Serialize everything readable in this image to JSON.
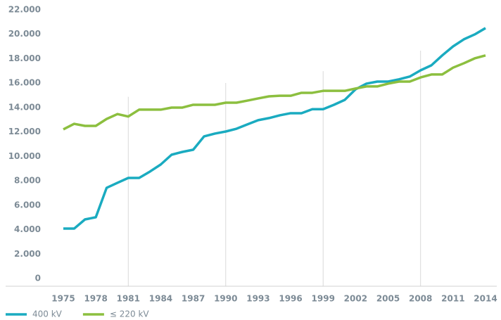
{
  "chart_data": {
    "type": "line",
    "x": [
      1975,
      1976,
      1977,
      1978,
      1979,
      1980,
      1981,
      1982,
      1983,
      1984,
      1985,
      1986,
      1987,
      1988,
      1989,
      1990,
      1991,
      1992,
      1993,
      1994,
      1995,
      1996,
      1997,
      1998,
      1999,
      2000,
      2001,
      2002,
      2003,
      2004,
      2005,
      2006,
      2007,
      2008,
      2009,
      2010,
      2011,
      2012,
      2013,
      2014
    ],
    "series": [
      {
        "name": "400 kV",
        "color": "#1aabc0",
        "values": [
          4720,
          4720,
          5470,
          5650,
          8060,
          8470,
          8870,
          8870,
          9390,
          9970,
          10770,
          11000,
          11180,
          12270,
          12500,
          12670,
          12900,
          13250,
          13600,
          13770,
          14000,
          14170,
          14170,
          14500,
          14500,
          14860,
          15260,
          16130,
          16590,
          16760,
          16760,
          16940,
          17170,
          17680,
          18090,
          18900,
          19640,
          20220,
          20620,
          21140
        ]
      },
      {
        "name": "≤ 220 kV",
        "color": "#8cbf3f",
        "values": [
          12850,
          13300,
          13130,
          13130,
          13700,
          14100,
          13900,
          14460,
          14460,
          14460,
          14630,
          14630,
          14860,
          14860,
          14860,
          15030,
          15030,
          15200,
          15380,
          15550,
          15600,
          15600,
          15840,
          15840,
          16000,
          16000,
          16000,
          16190,
          16360,
          16360,
          16590,
          16760,
          16760,
          17100,
          17340,
          17340,
          17900,
          18260,
          18660,
          18900
        ]
      }
    ],
    "xlim": [
      1975,
      2014
    ],
    "xticks": [
      1975,
      1978,
      1981,
      1984,
      1987,
      1990,
      1993,
      1996,
      1999,
      2002,
      2005,
      2008,
      2011,
      2014
    ],
    "ylim": [
      0,
      22000
    ],
    "yticks": [
      0,
      {
        "value": 2000,
        "label": "2.000"
      },
      {
        "value": 4000,
        "label": "4.000"
      },
      {
        "value": 6000,
        "label": "6.000"
      },
      {
        "value": 8000,
        "label": "8.000"
      },
      {
        "value": 10000,
        "label": "10.000"
      },
      {
        "value": 12000,
        "label": "12.000"
      },
      {
        "value": 14000,
        "label": "14.000"
      },
      {
        "value": 16000,
        "label": "16.000"
      },
      {
        "value": 18000,
        "label": "18.000"
      },
      {
        "value": 20000,
        "label": "20.000"
      },
      {
        "value": 22000,
        "label": "22.000"
      }
    ],
    "legend": "bottom-left"
  }
}
